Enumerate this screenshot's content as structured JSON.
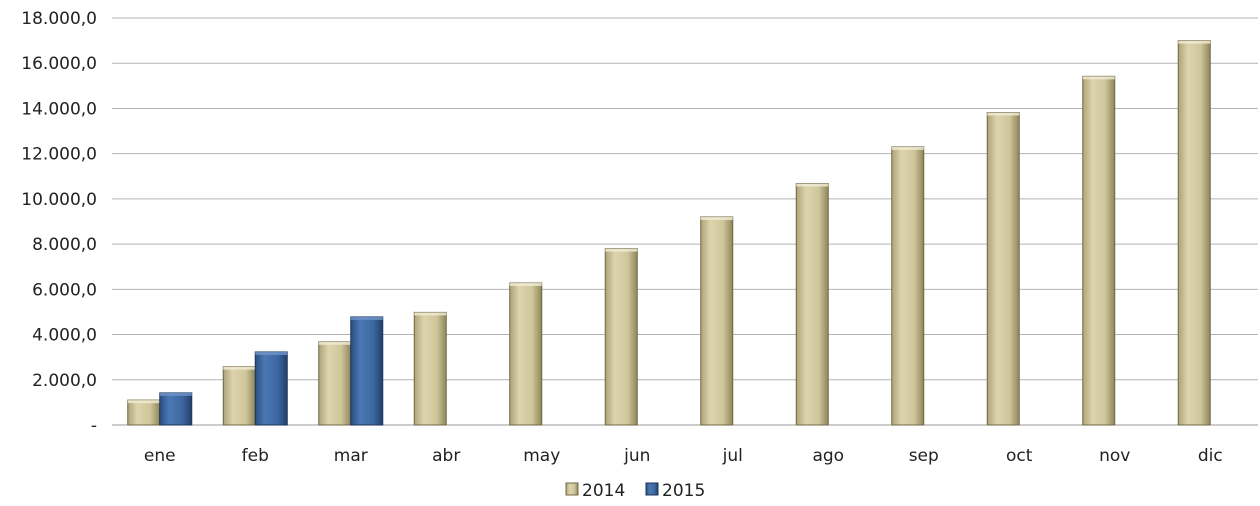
{
  "chart_data": {
    "type": "bar",
    "categories": [
      "ene",
      "feb",
      "mar",
      "abr",
      "may",
      "jun",
      "jul",
      "ago",
      "sep",
      "oct",
      "nov",
      "dic"
    ],
    "series": [
      {
        "name": "2014",
        "color": "#d3c9a0",
        "values": [
          1100,
          2580,
          3680,
          4980,
          6280,
          7800,
          9200,
          10680,
          12300,
          13820,
          15420,
          17000
        ]
      },
      {
        "name": "2015",
        "color": "#3f6aa3",
        "values": [
          1420,
          3230,
          4780,
          null,
          null,
          null,
          null,
          null,
          null,
          null,
          null,
          null
        ]
      }
    ],
    "y_ticks": [
      {
        "value": 0,
        "label": "-"
      },
      {
        "value": 2000,
        "label": "2.000,0"
      },
      {
        "value": 4000,
        "label": "4.000,0"
      },
      {
        "value": 6000,
        "label": "6.000,0"
      },
      {
        "value": 8000,
        "label": "8.000,0"
      },
      {
        "value": 10000,
        "label": "10.000,0"
      },
      {
        "value": 12000,
        "label": "12.000,0"
      },
      {
        "value": 14000,
        "label": "14.000,0"
      },
      {
        "value": 16000,
        "label": "16.000,0"
      },
      {
        "value": 18000,
        "label": "18.000,0"
      }
    ],
    "ylim": [
      0,
      18000
    ],
    "grid": true,
    "legend_position": "bottom-center",
    "title": "",
    "xlabel": "",
    "ylabel": ""
  }
}
